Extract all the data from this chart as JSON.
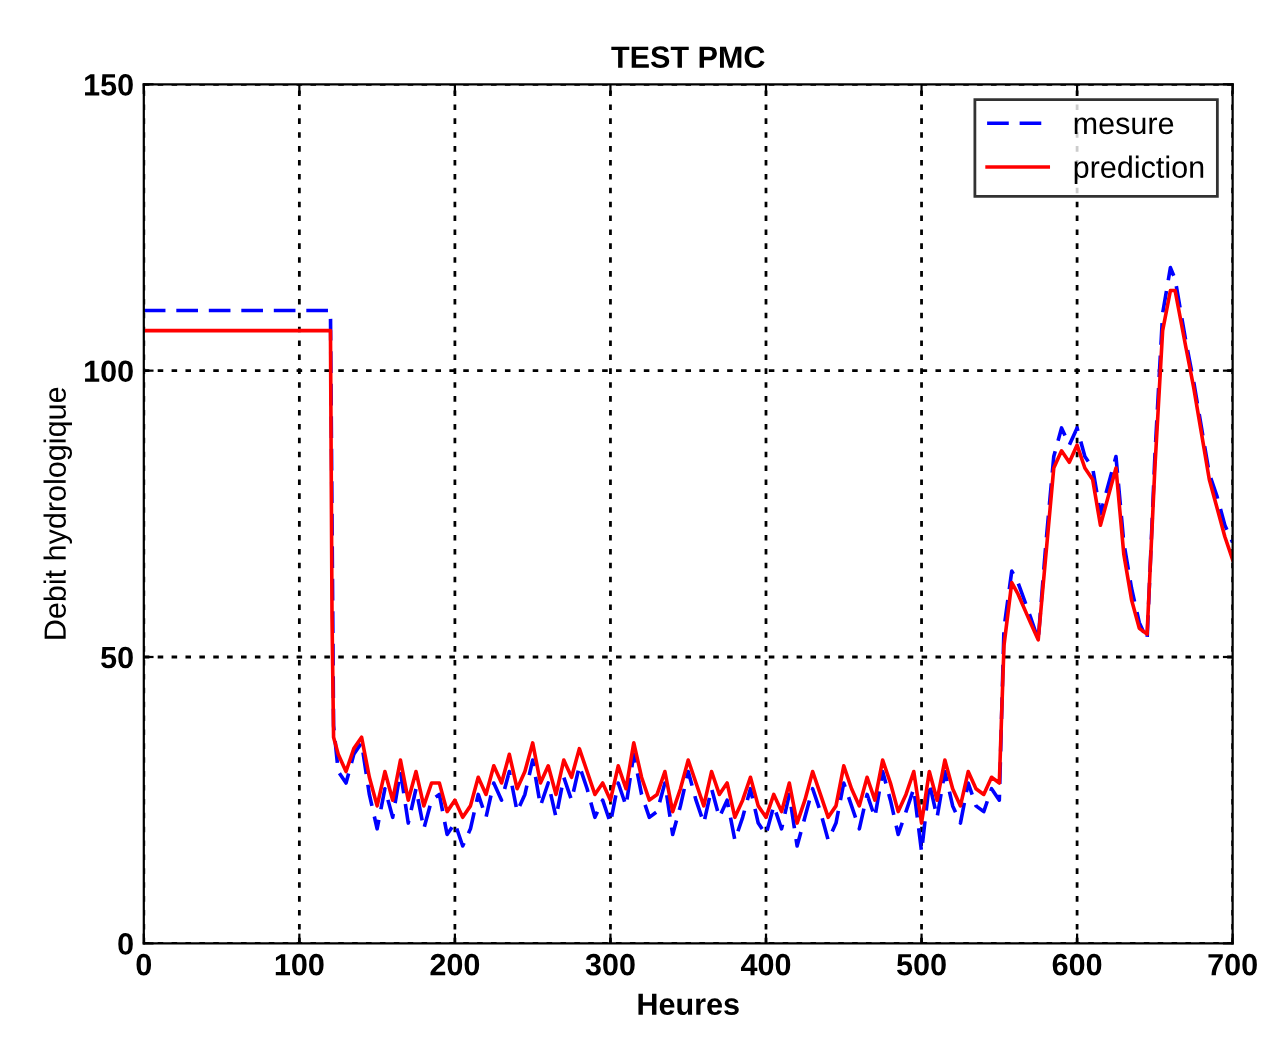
{
  "chart_data": {
    "type": "line",
    "title": "TEST PMC",
    "xlabel": "Heures",
    "ylabel": "Debit hydrologique",
    "xlim": [
      0,
      700
    ],
    "ylim": [
      0,
      150
    ],
    "xticks": [
      0,
      100,
      200,
      300,
      400,
      500,
      600,
      700
    ],
    "yticks": [
      0,
      50,
      100,
      150
    ],
    "grid": true,
    "legend": "top right",
    "series": [
      {
        "name": "mesure",
        "color": "#0000ff",
        "line_style": "dashed",
        "x": [
          0,
          120,
          122,
          125,
          130,
          135,
          140,
          145,
          150,
          155,
          160,
          165,
          170,
          175,
          180,
          185,
          190,
          195,
          200,
          205,
          210,
          215,
          220,
          225,
          230,
          235,
          240,
          245,
          250,
          255,
          260,
          265,
          270,
          275,
          280,
          285,
          290,
          295,
          300,
          305,
          310,
          315,
          320,
          325,
          330,
          335,
          340,
          345,
          350,
          355,
          360,
          365,
          370,
          375,
          380,
          385,
          390,
          395,
          400,
          405,
          410,
          415,
          420,
          425,
          430,
          435,
          440,
          445,
          450,
          455,
          460,
          465,
          470,
          475,
          480,
          485,
          490,
          495,
          500,
          505,
          510,
          515,
          520,
          525,
          530,
          535,
          540,
          545,
          550,
          553,
          558,
          562,
          570,
          575,
          580,
          585,
          590,
          595,
          600,
          605,
          610,
          615,
          620,
          625,
          630,
          635,
          640,
          645,
          650,
          655,
          660,
          663,
          670,
          675,
          680,
          685,
          690,
          695,
          700
        ],
        "values": [
          110.5,
          110.5,
          38,
          30,
          28,
          33,
          35,
          26,
          20,
          27,
          22,
          30,
          21,
          27,
          20,
          25,
          26,
          19,
          21,
          17,
          20,
          26,
          22,
          28,
          25,
          30,
          23,
          26,
          32,
          24,
          28,
          22,
          29,
          25,
          31,
          27,
          22,
          25,
          21,
          28,
          24,
          33,
          26,
          22,
          23,
          28,
          19,
          24,
          30,
          25,
          21,
          27,
          22,
          25,
          18,
          22,
          27,
          21,
          19,
          24,
          20,
          26,
          17,
          22,
          27,
          23,
          18,
          21,
          28,
          24,
          20,
          26,
          22,
          30,
          25,
          19,
          23,
          27,
          16,
          28,
          22,
          30,
          24,
          21,
          28,
          24,
          23,
          27,
          25,
          55,
          65,
          63,
          57,
          53,
          70,
          85,
          90,
          87,
          90,
          85,
          83,
          75,
          80,
          85,
          70,
          62,
          56,
          53,
          85,
          110,
          118,
          116,
          105,
          98,
          90,
          82,
          78,
          73,
          70
        ]
      },
      {
        "name": "prediction",
        "color": "#ff0000",
        "line_style": "solid",
        "x": [
          0,
          120,
          121,
          122,
          125,
          130,
          135,
          140,
          145,
          150,
          155,
          160,
          165,
          170,
          175,
          180,
          185,
          190,
          195,
          200,
          205,
          210,
          215,
          220,
          225,
          230,
          235,
          240,
          245,
          250,
          255,
          260,
          265,
          270,
          275,
          280,
          285,
          290,
          295,
          300,
          305,
          310,
          315,
          320,
          325,
          330,
          335,
          340,
          345,
          350,
          355,
          360,
          365,
          370,
          375,
          380,
          385,
          390,
          395,
          400,
          405,
          410,
          415,
          420,
          425,
          430,
          435,
          440,
          445,
          450,
          455,
          460,
          465,
          470,
          475,
          480,
          485,
          490,
          495,
          500,
          505,
          510,
          515,
          520,
          525,
          530,
          535,
          540,
          545,
          550,
          553,
          558,
          562,
          570,
          575,
          580,
          585,
          590,
          595,
          600,
          605,
          610,
          615,
          620,
          625,
          630,
          635,
          640,
          645,
          650,
          655,
          660,
          663,
          670,
          675,
          680,
          685,
          690,
          695,
          700
        ],
        "values": [
          107,
          107,
          57,
          36,
          33,
          30,
          34,
          36,
          29,
          24,
          30,
          25,
          32,
          25,
          30,
          24,
          28,
          28,
          23,
          25,
          22,
          24,
          29,
          26,
          31,
          28,
          33,
          27,
          30,
          35,
          28,
          31,
          26,
          32,
          29,
          34,
          30,
          26,
          28,
          25,
          31,
          27,
          35,
          29,
          25,
          26,
          30,
          23,
          27,
          32,
          28,
          24,
          30,
          26,
          28,
          22,
          25,
          29,
          24,
          22,
          26,
          23,
          28,
          21,
          25,
          30,
          26,
          22,
          24,
          31,
          27,
          24,
          29,
          25,
          32,
          28,
          23,
          26,
          30,
          21,
          30,
          25,
          32,
          27,
          24,
          30,
          27,
          26,
          29,
          28,
          52,
          63,
          61,
          56,
          53,
          68,
          83,
          86,
          84,
          87,
          83,
          81,
          73,
          78,
          83,
          68,
          60,
          55,
          54,
          83,
          107,
          114,
          114,
          104,
          97,
          89,
          81,
          76,
          71,
          67
        ]
      }
    ]
  }
}
